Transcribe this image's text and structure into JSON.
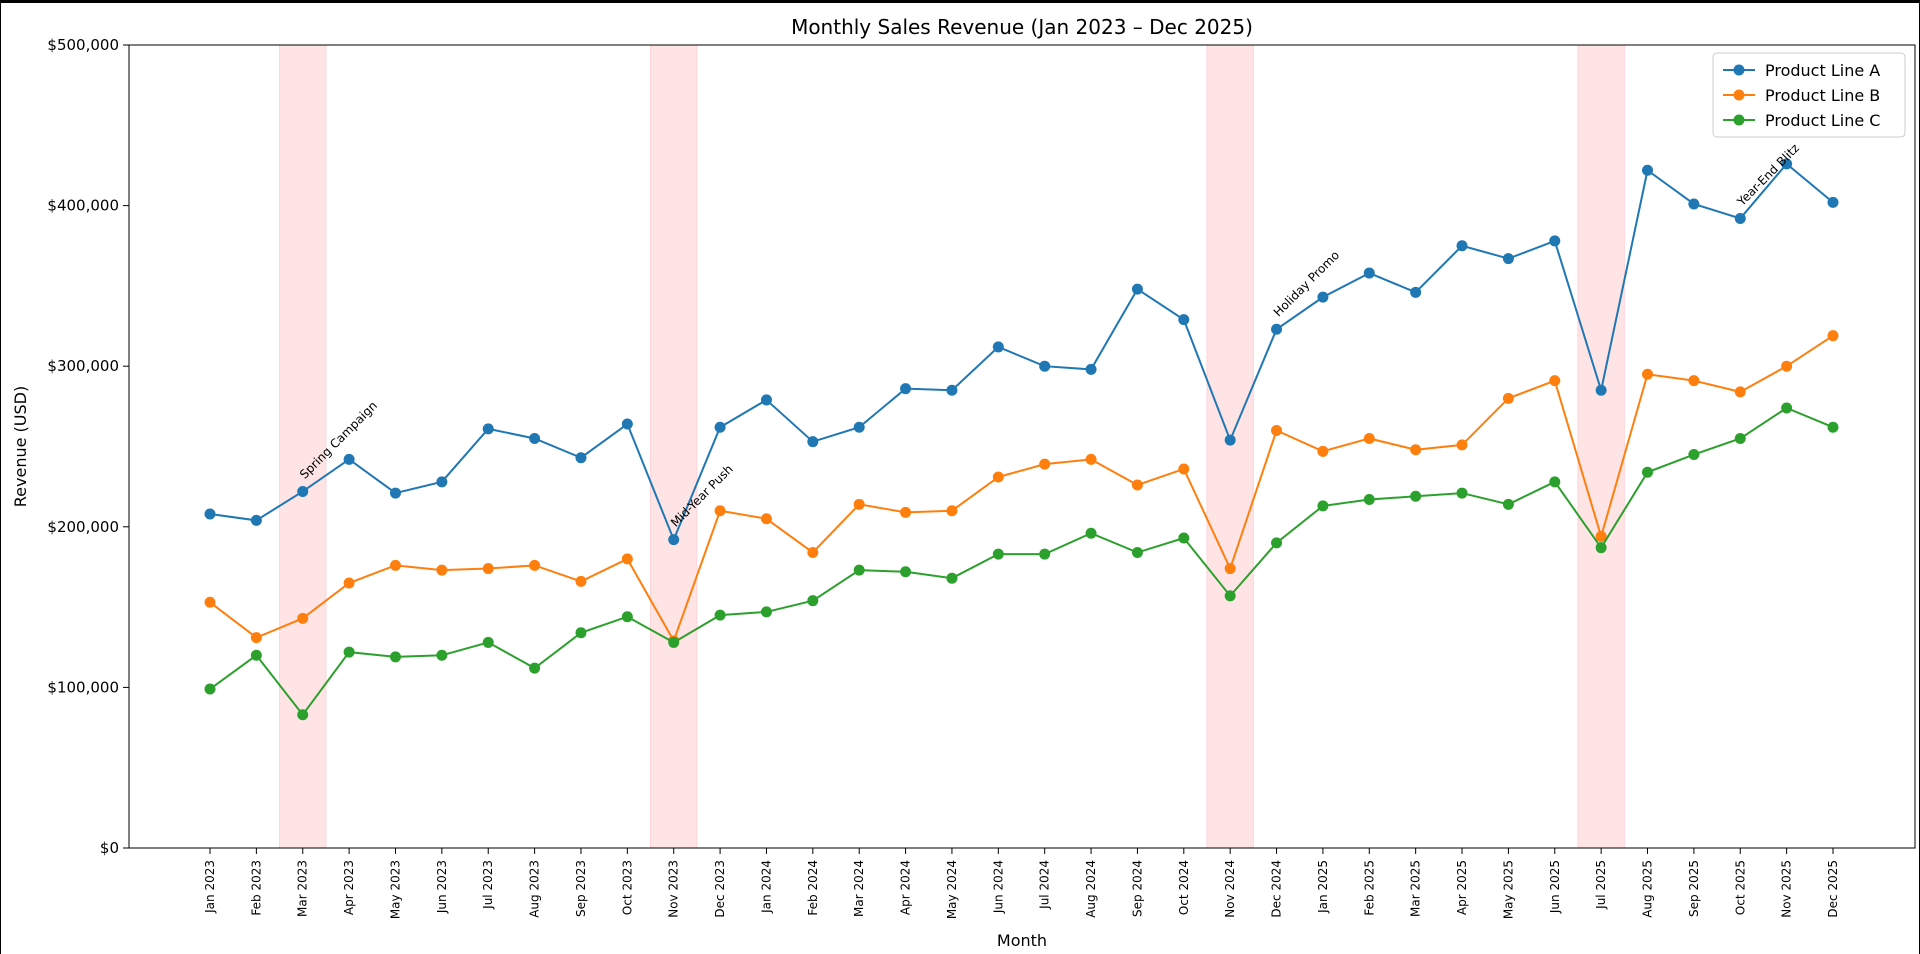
{
  "chart_data": {
    "type": "line",
    "title": "Monthly Sales Revenue (Jan 2023 – Dec 2025)",
    "xlabel": "Month",
    "ylabel": "Revenue (USD)",
    "ylim": [
      0,
      500000
    ],
    "yticks": [
      0,
      100000,
      200000,
      300000,
      400000,
      500000
    ],
    "ytick_labels": [
      "$0",
      "$100,000",
      "$200,000",
      "$300,000",
      "$400,000",
      "$500,000"
    ],
    "grid": false,
    "legend_position": "top-right",
    "categories": [
      "Jan 2023",
      "Feb 2023",
      "Mar 2023",
      "Apr 2023",
      "May 2023",
      "Jun 2023",
      "Jul 2023",
      "Aug 2023",
      "Sep 2023",
      "Oct 2023",
      "Nov 2023",
      "Dec 2023",
      "Jan 2024",
      "Feb 2024",
      "Mar 2024",
      "Apr 2024",
      "May 2024",
      "Jun 2024",
      "Jul 2024",
      "Aug 2024",
      "Sep 2024",
      "Oct 2024",
      "Nov 2024",
      "Dec 2024",
      "Jan 2025",
      "Feb 2025",
      "Mar 2025",
      "Apr 2025",
      "May 2025",
      "Jun 2025",
      "Jul 2025",
      "Aug 2025",
      "Sep 2025",
      "Oct 2025",
      "Nov 2025",
      "Dec 2025"
    ],
    "series": [
      {
        "name": "Product Line A",
        "color": "#1f77b4",
        "values": [
          208000,
          204000,
          222000,
          242000,
          221000,
          228000,
          261000,
          255000,
          243000,
          264000,
          192000,
          262000,
          279000,
          253000,
          262000,
          286000,
          285000,
          312000,
          300000,
          298000,
          348000,
          329000,
          254000,
          323000,
          343000,
          358000,
          346000,
          375000,
          367000,
          378000,
          285000,
          422000,
          401000,
          392000,
          426000,
          402000
        ]
      },
      {
        "name": "Product Line B",
        "color": "#ff7f0e",
        "values": [
          153000,
          131000,
          143000,
          165000,
          176000,
          173000,
          174000,
          176000,
          166000,
          180000,
          129000,
          210000,
          205000,
          184000,
          214000,
          209000,
          210000,
          231000,
          239000,
          242000,
          226000,
          236000,
          174000,
          260000,
          247000,
          255000,
          248000,
          251000,
          280000,
          291000,
          194000,
          295000,
          291000,
          284000,
          300000,
          319000
        ]
      },
      {
        "name": "Product Line C",
        "color": "#2ca02c",
        "values": [
          99000,
          120000,
          83000,
          122000,
          119000,
          120000,
          128000,
          112000,
          134000,
          144000,
          128000,
          145000,
          147000,
          154000,
          173000,
          172000,
          168000,
          183000,
          183000,
          196000,
          184000,
          193000,
          157000,
          190000,
          213000,
          217000,
          219000,
          221000,
          214000,
          228000,
          187000,
          234000,
          245000,
          255000,
          274000,
          262000
        ]
      }
    ],
    "shaded_regions": [
      {
        "center_index": 2,
        "color": "#ffe4e6"
      },
      {
        "center_index": 10,
        "color": "#ffe4e6"
      },
      {
        "center_index": 22,
        "color": "#ffe4e6"
      },
      {
        "center_index": 30,
        "color": "#ffe4e6"
      }
    ],
    "annotations": [
      {
        "text": "Spring Campaign",
        "index": 2,
        "value": 222000
      },
      {
        "text": "Mid-Year Push",
        "index": 10,
        "value": 192000
      },
      {
        "text": "Holiday Promo",
        "index": 23,
        "value": 323000
      },
      {
        "text": "Year-End Blitz",
        "index": 33,
        "value": 392000
      }
    ]
  }
}
